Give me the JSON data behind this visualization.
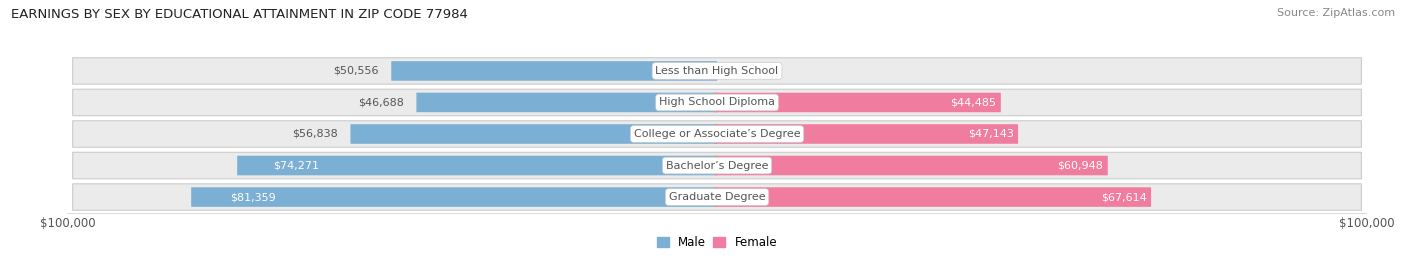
{
  "title": "EARNINGS BY SEX BY EDUCATIONAL ATTAINMENT IN ZIP CODE 77984",
  "source": "Source: ZipAtlas.com",
  "categories": [
    "Less than High School",
    "High School Diploma",
    "College or Associate’s Degree",
    "Bachelor’s Degree",
    "Graduate Degree"
  ],
  "male_values": [
    50556,
    46688,
    56838,
    74271,
    81359
  ],
  "female_values": [
    0,
    44485,
    47143,
    60948,
    67614
  ],
  "male_color": "#7bafd4",
  "female_color": "#f07ca0",
  "row_bg_color": "#ebebeb",
  "row_border_color": "#cccccc",
  "max_value": 100000,
  "xlabel_left": "$100,000",
  "xlabel_right": "$100,000",
  "label_color_dark": "#555555",
  "label_color_white": "#ffffff",
  "title_fontsize": 9.5,
  "source_fontsize": 8.0,
  "bar_label_fontsize": 8.0,
  "category_fontsize": 8.0,
  "axis_fontsize": 8.5,
  "male_inside_threshold": 60000,
  "female_inside_threshold": 20000
}
